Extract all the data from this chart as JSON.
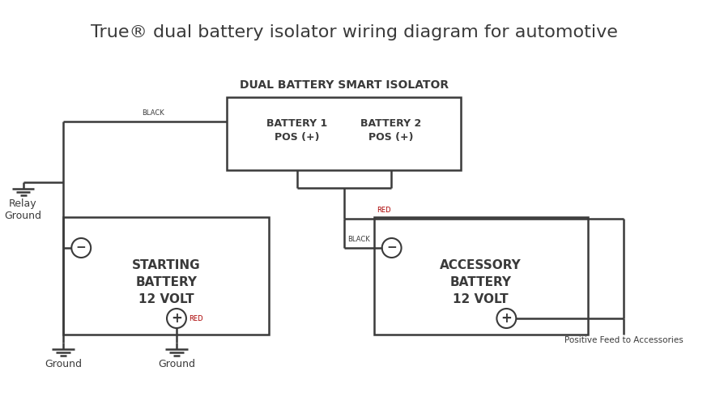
{
  "title": "True® dual battery isolator wiring diagram for automotive",
  "title_fontsize": 16,
  "bg_color": "#ffffff",
  "line_color": "#3a3a3a",
  "text_color": "#3a3a3a",
  "isolator_label": "DUAL BATTERY SMART ISOLATOR",
  "bat1_label": "BATTERY 1\nPOS (+)",
  "bat2_label": "BATTERY 2\nPOS (+)",
  "starting_label": "STARTING\nBATTERY\n12 VOLT",
  "accessory_label": "ACCESSORY\nBATTERY\n12 VOLT",
  "relay_ground_label": "Relay\nGround",
  "ground1_label": "Ground",
  "ground2_label": "Ground",
  "pf_label": "Positive Feed to Accessories",
  "lw": 1.8
}
